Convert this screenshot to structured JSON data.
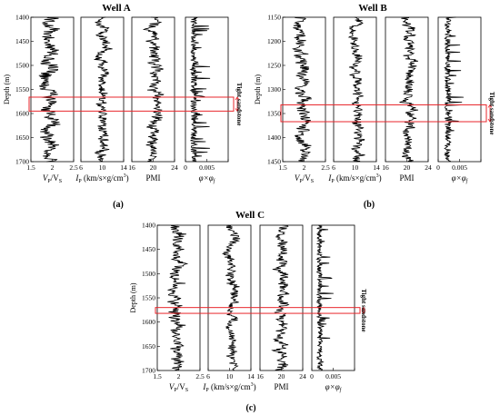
{
  "chart_data": [
    {
      "type": "line",
      "title": "Well A",
      "panel_label": "(a)",
      "ylabel": "Depth (m)",
      "ylim": [
        1400,
        1700
      ],
      "yticks": [
        1400,
        1450,
        1500,
        1550,
        1600,
        1650,
        1700
      ],
      "annotation": "Tight sandstone",
      "band": [
        1566,
        1595
      ],
      "tracks": [
        {
          "key": "vpvs",
          "xlim": [
            1.5,
            2.5
          ],
          "xticks": [
            "1.5",
            "2",
            "2.5"
          ],
          "base": 1.95,
          "amp": 0.25
        },
        {
          "key": "ip",
          "xlim": [
            6,
            14
          ],
          "xticks": [
            "6",
            "10",
            "14"
          ],
          "base": 10.2,
          "amp": 1.4
        },
        {
          "key": "pmi",
          "xlim": [
            16,
            24
          ],
          "xticks": [
            "16",
            "20",
            "24"
          ],
          "base": 20.2,
          "amp": 1.6
        },
        {
          "key": "phi",
          "xlim": [
            0,
            0.01
          ],
          "xticks": [
            "0",
            "0.005",
            ""
          ],
          "base": 0.0012,
          "amp": 0.0035
        }
      ]
    },
    {
      "type": "line",
      "title": "Well B",
      "panel_label": "(b)",
      "ylabel": "Depth (m)",
      "ylim": [
        1150,
        1450
      ],
      "yticks": [
        1150,
        1200,
        1250,
        1300,
        1350,
        1400,
        1450
      ],
      "annotation": "Tight sandstone",
      "band": [
        1332,
        1367
      ],
      "tracks": [
        {
          "key": "vpvs",
          "xlim": [
            1.5,
            2.5
          ],
          "xticks": [
            "1.5",
            "2",
            "2.5"
          ],
          "base": 1.95,
          "amp": 0.22
        },
        {
          "key": "ip",
          "xlim": [
            6,
            14
          ],
          "xticks": [
            "6",
            "10",
            "14"
          ],
          "base": 10.4,
          "amp": 1.3
        },
        {
          "key": "pmi",
          "xlim": [
            16,
            24
          ],
          "xticks": [
            "16",
            "20",
            "24"
          ],
          "base": 20.4,
          "amp": 1.5
        },
        {
          "key": "phi",
          "xlim": [
            0,
            0.01
          ],
          "xticks": [
            "0",
            "0.005",
            ""
          ],
          "base": 0.0015,
          "amp": 0.0035
        }
      ]
    },
    {
      "type": "line",
      "title": "Well C",
      "panel_label": "(c)",
      "ylabel": "Depth (m)",
      "ylim": [
        1400,
        1700
      ],
      "yticks": [
        1400,
        1450,
        1500,
        1550,
        1600,
        1650,
        1700
      ],
      "annotation": "Tight sandstone",
      "band": [
        1570,
        1582
      ],
      "tracks": [
        {
          "key": "vpvs",
          "xlim": [
            1.5,
            2.5
          ],
          "xticks": [
            "1.5",
            "2",
            "2.5"
          ],
          "base": 1.95,
          "amp": 0.2
        },
        {
          "key": "ip",
          "xlim": [
            6,
            14
          ],
          "xticks": [
            "6",
            "10",
            "14"
          ],
          "base": 10.3,
          "amp": 1.3
        },
        {
          "key": "pmi",
          "xlim": [
            16,
            24
          ],
          "xticks": [
            "16",
            "20",
            "24"
          ],
          "base": 20.3,
          "amp": 1.5
        },
        {
          "key": "phi",
          "xlim": [
            0,
            0.01
          ],
          "xticks": [
            "0",
            "0.005",
            ""
          ],
          "base": 0.0012,
          "amp": 0.003
        }
      ]
    }
  ],
  "track_labels": {
    "vpvs": {
      "main": "V",
      "sub1": "P",
      "mid": "/V",
      "sub2": "S"
    },
    "ip": {
      "main": "I",
      "sub1": "P",
      "rest": " (km/s×g/cm",
      "sup": "3",
      "end": ")"
    },
    "pmi": {
      "main": "PMI"
    },
    "phi": {
      "main": "φ×φ",
      "sub1": "f"
    }
  },
  "colors": {
    "curve": "#000000",
    "band": "#e8262b",
    "frame": "#000000"
  }
}
